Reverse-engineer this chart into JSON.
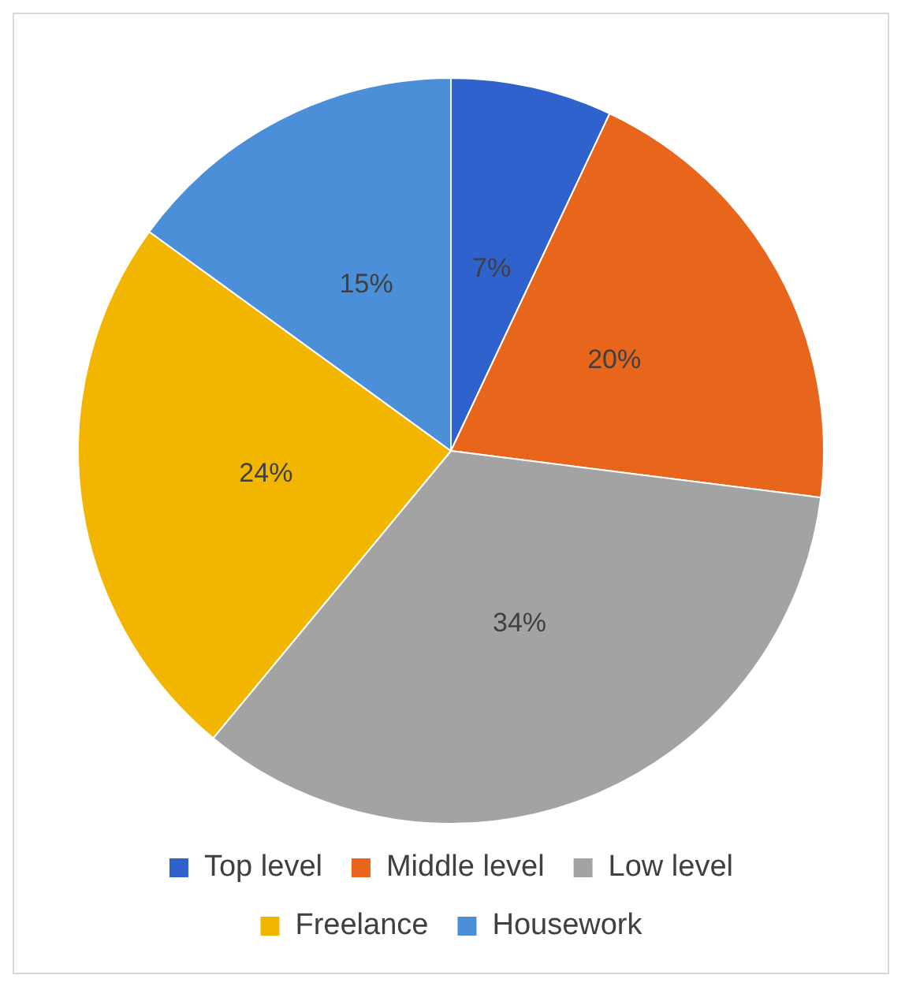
{
  "chart_data": {
    "type": "pie",
    "categories": [
      "Top level",
      "Middle level",
      "Low level",
      "Freelance",
      "Housework"
    ],
    "values": [
      7,
      20,
      34,
      24,
      15
    ],
    "value_labels": [
      "7%",
      "20%",
      "34%",
      "24%",
      "15%"
    ],
    "colors": [
      "#2f62cc",
      "#e8661c",
      "#a3a3a3",
      "#f2b600",
      "#4a8fd8"
    ],
    "legend": "bottom"
  }
}
